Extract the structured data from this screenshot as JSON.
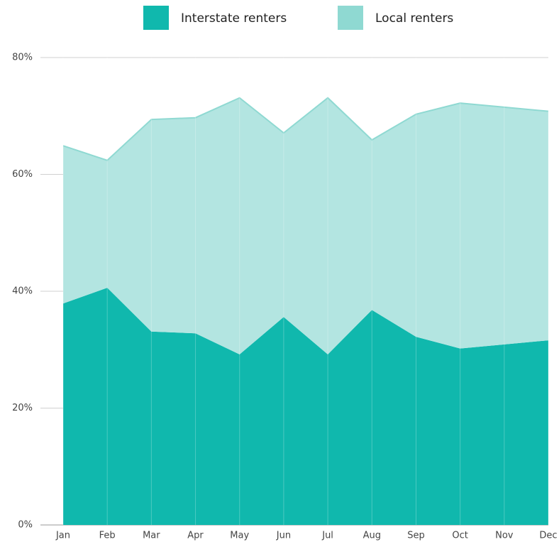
{
  "chart_data": {
    "type": "stacked_area",
    "categories": [
      "Jan",
      "Feb",
      "Mar",
      "Apr",
      "May",
      "Jun",
      "Jul",
      "Aug",
      "Sep",
      "Oct",
      "Nov",
      "Dec"
    ],
    "series": [
      {
        "name": "Interstate renters",
        "color": "#10b8ad",
        "values": [
          37.9,
          40.6,
          33.1,
          32.8,
          29.2,
          35.6,
          29.2,
          36.8,
          32.2,
          30.2,
          30.9,
          31.6
        ]
      },
      {
        "name": "Local renters",
        "color": "#b3e5e1",
        "legend_color": "#8fd9d2",
        "values": [
          27.0,
          21.8,
          36.3,
          36.9,
          43.9,
          31.5,
          43.9,
          29.1,
          38.1,
          42.0,
          40.6,
          39.2
        ]
      }
    ],
    "ylim": [
      0,
      80
    ],
    "yticks": [
      {
        "value": 0,
        "label": "0%"
      },
      {
        "value": 20,
        "label": "20%"
      },
      {
        "value": 40,
        "label": "40%"
      },
      {
        "value": 60,
        "label": "60%"
      },
      {
        "value": 80,
        "label": "80%"
      }
    ],
    "grid": true,
    "legend": "top"
  }
}
